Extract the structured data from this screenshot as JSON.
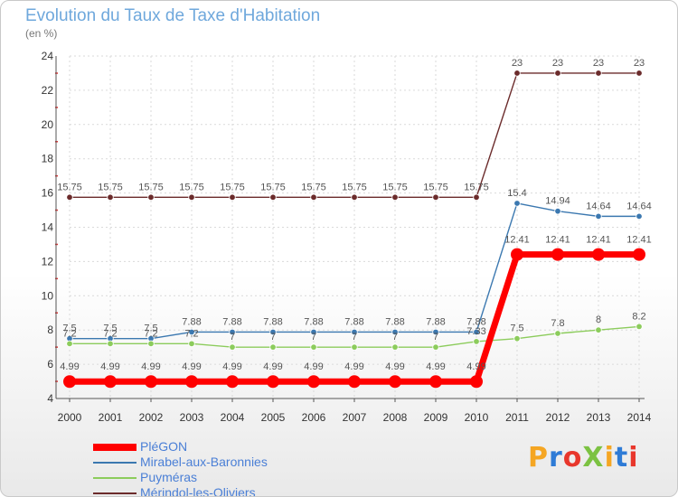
{
  "title": "Evolution du Taux de Taxe d'Habitation",
  "unit": "(en %)",
  "logo": {
    "text": "ProXiti",
    "colors": [
      "#f5a623",
      "#2e7bd6",
      "#e8372c",
      "#7cc242"
    ]
  },
  "chart_data": {
    "type": "line",
    "title": "Evolution du Taux de Taxe d'Habitation",
    "ylabel": "(en %)",
    "x": [
      2000,
      2001,
      2002,
      2003,
      2004,
      2005,
      2006,
      2007,
      2008,
      2009,
      2010,
      2011,
      2012,
      2013,
      2014
    ],
    "ylim": [
      4,
      24
    ],
    "yticks": [
      4,
      6,
      8,
      10,
      12,
      14,
      16,
      18,
      20,
      22,
      24
    ],
    "grid": true,
    "legend": "bottom-left",
    "series": [
      {
        "name": "Mérindol-les-Oliviers",
        "color": "#6b2b2b",
        "values": [
          15.75,
          15.75,
          15.75,
          15.75,
          15.75,
          15.75,
          15.75,
          15.75,
          15.75,
          15.75,
          15.75,
          23,
          23,
          23,
          23
        ],
        "labels": [
          "15.75",
          "15.75",
          "15.75",
          "15.75",
          "15.75",
          "15.75",
          "15.75",
          "15.75",
          "15.75",
          "15.75",
          "15.75",
          "23",
          "23",
          "23",
          "23"
        ]
      },
      {
        "name": "Mirabel-aux-Baronnies",
        "color": "#3b78b0",
        "values": [
          7.5,
          7.5,
          7.5,
          7.88,
          7.88,
          7.88,
          7.88,
          7.88,
          7.88,
          7.88,
          7.88,
          15.4,
          14.94,
          14.64,
          14.64
        ],
        "labels": [
          "7.5",
          "7.5",
          "7.5",
          "7.88",
          "7.88",
          "7.88",
          "7.88",
          "7.88",
          "7.88",
          "7.88",
          "7.88",
          "15.4",
          "14.94",
          "14.64",
          "14.64"
        ]
      },
      {
        "name": "Puyméras",
        "color": "#8ccc5c",
        "values": [
          7.2,
          7.2,
          7.2,
          7.2,
          7,
          7,
          7,
          7,
          7,
          7,
          7.33,
          7.5,
          7.8,
          8,
          8.2
        ],
        "labels": [
          "7.2",
          "7.2",
          "7.2",
          "7.2",
          "7",
          "7",
          "7",
          "7",
          "7",
          "7",
          "7.33",
          "7.5",
          "7.8",
          "8",
          "8.2"
        ]
      },
      {
        "name": "PléGON",
        "color": "#ff0000",
        "values": [
          4.99,
          4.99,
          4.99,
          4.99,
          4.99,
          4.99,
          4.99,
          4.99,
          4.99,
          4.99,
          4.99,
          12.41,
          12.41,
          12.41,
          12.41
        ],
        "labels": [
          "4.99",
          "4.99",
          "4.99",
          "4.99",
          "4.99",
          "4.99",
          "4.99",
          "4.99",
          "4.99",
          "4.99",
          "4.99",
          "12.41",
          "12.41",
          "12.41",
          "12.41"
        ]
      }
    ],
    "legend_order": [
      "PléGON",
      "Mirabel-aux-Baronnies",
      "Puyméras",
      "Mérindol-les-Oliviers"
    ]
  }
}
